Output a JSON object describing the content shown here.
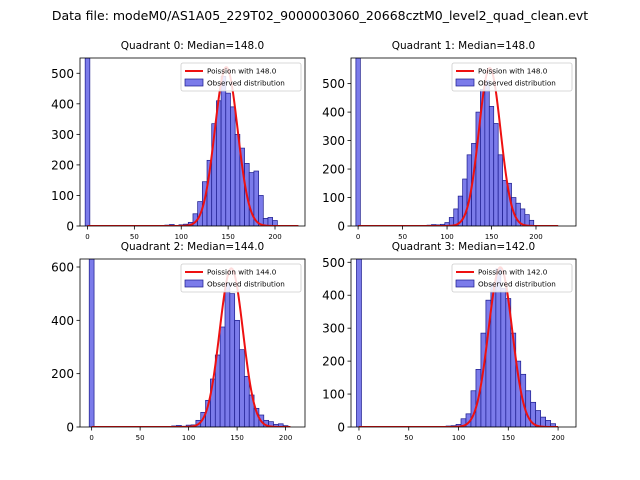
{
  "suptitle": "Data file: modeM0/AS1A05_229T02_9000003060_20668cztM0_level2_quad_clean.evt",
  "colors": {
    "bar_fill": "#7b7bea",
    "bar_edge": "#1a1a8c",
    "curve": "#ee1111",
    "axis": "#000000"
  },
  "chart_data": [
    {
      "type": "bar",
      "title": "Quadrant 0: Median=148.0",
      "median": 148.0,
      "legend": {
        "curve_label": "Poission with 148.0",
        "bar_label": "Observed distribution",
        "placement": "top-right"
      },
      "xlim": [
        -8,
        232
      ],
      "ylim": [
        0,
        550
      ],
      "xticks": [
        0,
        50,
        100,
        150,
        200
      ],
      "yticks": [
        0,
        100,
        200,
        300,
        400,
        500
      ],
      "bin_width": 5,
      "bins": [
        {
          "x": 0,
          "y": 550
        },
        {
          "x": 85,
          "y": 3
        },
        {
          "x": 90,
          "y": 5
        },
        {
          "x": 95,
          "y": 2
        },
        {
          "x": 100,
          "y": 4
        },
        {
          "x": 105,
          "y": 6
        },
        {
          "x": 110,
          "y": 12
        },
        {
          "x": 115,
          "y": 40
        },
        {
          "x": 120,
          "y": 80
        },
        {
          "x": 125,
          "y": 145
        },
        {
          "x": 130,
          "y": 215
        },
        {
          "x": 135,
          "y": 335
        },
        {
          "x": 140,
          "y": 410
        },
        {
          "x": 145,
          "y": 490
        },
        {
          "x": 150,
          "y": 435
        },
        {
          "x": 155,
          "y": 390
        },
        {
          "x": 160,
          "y": 300
        },
        {
          "x": 165,
          "y": 255
        },
        {
          "x": 170,
          "y": 205
        },
        {
          "x": 175,
          "y": 175
        },
        {
          "x": 180,
          "y": 180
        },
        {
          "x": 185,
          "y": 100
        },
        {
          "x": 190,
          "y": 25
        },
        {
          "x": 195,
          "y": 28
        },
        {
          "x": 200,
          "y": 18
        }
      ],
      "poisson_peak": 520,
      "poisson_range": [
        0,
        225
      ]
    },
    {
      "type": "bar",
      "title": "Quadrant 1: Median=148.0",
      "median": 148.0,
      "legend": {
        "curve_label": "Poission with 148.0",
        "bar_label": "Observed distribution",
        "placement": "top-right"
      },
      "xlim": [
        -8,
        245
      ],
      "ylim": [
        0,
        590
      ],
      "xticks": [
        0,
        50,
        100,
        150,
        200
      ],
      "yticks": [
        0,
        100,
        200,
        300,
        400,
        500
      ],
      "bin_width": 5,
      "bins": [
        {
          "x": 0,
          "y": 590
        },
        {
          "x": 80,
          "y": 3
        },
        {
          "x": 85,
          "y": 5
        },
        {
          "x": 90,
          "y": 4
        },
        {
          "x": 95,
          "y": 6
        },
        {
          "x": 100,
          "y": 12
        },
        {
          "x": 105,
          "y": 30
        },
        {
          "x": 110,
          "y": 60
        },
        {
          "x": 115,
          "y": 105
        },
        {
          "x": 120,
          "y": 165
        },
        {
          "x": 125,
          "y": 250
        },
        {
          "x": 130,
          "y": 290
        },
        {
          "x": 135,
          "y": 400
        },
        {
          "x": 140,
          "y": 480
        },
        {
          "x": 145,
          "y": 510
        },
        {
          "x": 150,
          "y": 420
        },
        {
          "x": 155,
          "y": 360
        },
        {
          "x": 160,
          "y": 250
        },
        {
          "x": 165,
          "y": 160
        },
        {
          "x": 170,
          "y": 150
        },
        {
          "x": 175,
          "y": 100
        },
        {
          "x": 180,
          "y": 80
        },
        {
          "x": 185,
          "y": 60
        },
        {
          "x": 190,
          "y": 40
        },
        {
          "x": 195,
          "y": 20
        }
      ],
      "poisson_peak": 555,
      "poisson_range": [
        0,
        225
      ]
    },
    {
      "type": "bar",
      "title": "Quadrant 2: Median=144.0",
      "median": 144.0,
      "legend": {
        "curve_label": "Poission with 144.0",
        "bar_label": "Observed distribution",
        "placement": "top-right"
      },
      "xlim": [
        -12,
        220
      ],
      "ylim": [
        0,
        630
      ],
      "xticks": [
        0,
        50,
        100,
        150,
        200
      ],
      "yticks": [
        0,
        200,
        400,
        600
      ],
      "bin_width": 5,
      "bins": [
        {
          "x": 0,
          "y": 630
        },
        {
          "x": 85,
          "y": 4
        },
        {
          "x": 90,
          "y": 6
        },
        {
          "x": 95,
          "y": 3
        },
        {
          "x": 100,
          "y": 7
        },
        {
          "x": 105,
          "y": 8
        },
        {
          "x": 110,
          "y": 25
        },
        {
          "x": 115,
          "y": 55
        },
        {
          "x": 120,
          "y": 100
        },
        {
          "x": 125,
          "y": 180
        },
        {
          "x": 130,
          "y": 270
        },
        {
          "x": 135,
          "y": 375
        },
        {
          "x": 140,
          "y": 540
        },
        {
          "x": 145,
          "y": 500
        },
        {
          "x": 150,
          "y": 400
        },
        {
          "x": 155,
          "y": 290
        },
        {
          "x": 160,
          "y": 190
        },
        {
          "x": 165,
          "y": 120
        },
        {
          "x": 170,
          "y": 70
        },
        {
          "x": 175,
          "y": 45
        },
        {
          "x": 180,
          "y": 25
        },
        {
          "x": 185,
          "y": 20
        },
        {
          "x": 190,
          "y": 10
        },
        {
          "x": 195,
          "y": 12
        },
        {
          "x": 200,
          "y": 5
        }
      ],
      "poisson_peak": 595,
      "poisson_range": [
        0,
        205
      ]
    },
    {
      "type": "bar",
      "title": "Quadrant 3: Median=142.0",
      "median": 142.0,
      "legend": {
        "curve_label": "Poission with 142.0",
        "bar_label": "Observed distribution",
        "placement": "top-right"
      },
      "xlim": [
        -8,
        218
      ],
      "ylim": [
        0,
        510
      ],
      "xticks": [
        0,
        50,
        100,
        150,
        200
      ],
      "yticks": [
        0,
        100,
        200,
        300,
        400,
        500
      ],
      "bin_width": 5,
      "bins": [
        {
          "x": 0,
          "y": 510
        },
        {
          "x": 90,
          "y": 3
        },
        {
          "x": 95,
          "y": 4
        },
        {
          "x": 100,
          "y": 8
        },
        {
          "x": 105,
          "y": 25
        },
        {
          "x": 110,
          "y": 40
        },
        {
          "x": 115,
          "y": 110
        },
        {
          "x": 120,
          "y": 175
        },
        {
          "x": 125,
          "y": 285
        },
        {
          "x": 130,
          "y": 385
        },
        {
          "x": 135,
          "y": 435
        },
        {
          "x": 140,
          "y": 480
        },
        {
          "x": 145,
          "y": 420
        },
        {
          "x": 150,
          "y": 390
        },
        {
          "x": 155,
          "y": 285
        },
        {
          "x": 160,
          "y": 200
        },
        {
          "x": 165,
          "y": 160
        },
        {
          "x": 170,
          "y": 110
        },
        {
          "x": 175,
          "y": 75
        },
        {
          "x": 180,
          "y": 50
        },
        {
          "x": 185,
          "y": 30
        },
        {
          "x": 190,
          "y": 20
        },
        {
          "x": 195,
          "y": 10
        }
      ],
      "poisson_peak": 485,
      "poisson_range": [
        0,
        200
      ]
    }
  ]
}
